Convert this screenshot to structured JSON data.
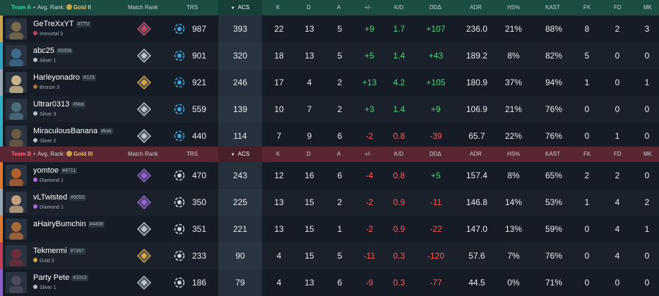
{
  "columns": {
    "match_rank": "Match Rank",
    "trs": "TRS",
    "acs": "ACS",
    "k": "K",
    "d": "D",
    "a": "A",
    "pm": "+/-",
    "kd": "K/D",
    "dd": "DDΔ",
    "adr": "ADR",
    "hs": "HS%",
    "kast": "KAST",
    "fk": "FK",
    "fd": "FD",
    "mk": "MK"
  },
  "team_a": {
    "name": "Team A",
    "avg_label": "Avg. Rank:",
    "avg_rank": "Gold II",
    "players": [
      {
        "name": "GeTreXxYT",
        "tag": "#TTV",
        "rank": "Immortal 3",
        "rank_color": "#c2455d",
        "trs": "987",
        "acs": "393",
        "k": "22",
        "d": "13",
        "a": "5",
        "pm": "+9",
        "kd": "1.7",
        "dd": "+107",
        "adr": "236.0",
        "hs": "21%",
        "kast": "88%",
        "fk": "8",
        "fd": "2",
        "mk": "3",
        "trend": "pos"
      },
      {
        "name": "abc25",
        "tag": "#3356",
        "rank": "Silver 1",
        "rank_color": "#b9c2c9",
        "trs": "901",
        "acs": "320",
        "k": "18",
        "d": "13",
        "a": "5",
        "pm": "+5",
        "kd": "1.4",
        "dd": "+43",
        "adr": "189.2",
        "hs": "8%",
        "kast": "82%",
        "fk": "5",
        "fd": "0",
        "mk": "0",
        "trend": "pos"
      },
      {
        "name": "Harleyonadro",
        "tag": "#123",
        "rank": "Bronze 3",
        "rank_color": "#a5773f",
        "trs": "921",
        "acs": "246",
        "k": "17",
        "d": "4",
        "a": "2",
        "pm": "+13",
        "kd": "4.2",
        "dd": "+105",
        "adr": "180.9",
        "hs": "37%",
        "kast": "94%",
        "fk": "1",
        "fd": "0",
        "mk": "1",
        "trend": "pos"
      },
      {
        "name": "Ultrar0313",
        "tag": "#Mat",
        "rank": "Silver 3",
        "rank_color": "#b9c2c9",
        "trs": "559",
        "acs": "139",
        "k": "10",
        "d": "7",
        "a": "2",
        "pm": "+3",
        "kd": "1.4",
        "dd": "+9",
        "adr": "106.9",
        "hs": "21%",
        "kast": "76%",
        "fk": "0",
        "fd": "0",
        "mk": "0",
        "trend": "pos"
      },
      {
        "name": "MiraculousBanana",
        "tag": "#kok",
        "rank": "Silver 2",
        "rank_color": "#b9c2c9",
        "trs": "440",
        "acs": "114",
        "k": "7",
        "d": "9",
        "a": "6",
        "pm": "-2",
        "kd": "0.8",
        "dd": "-39",
        "adr": "65.7",
        "hs": "22%",
        "kast": "76%",
        "fk": "0",
        "fd": "1",
        "mk": "0",
        "trend": "neg"
      }
    ]
  },
  "team_b": {
    "name": "Team B",
    "avg_label": "Avg. Rank:",
    "avg_rank": "Gold III",
    "players": [
      {
        "name": "yomtoe",
        "tag": "#4711",
        "rank": "Diamond 1",
        "rank_color": "#b168e0",
        "trs": "470",
        "acs": "243",
        "k": "12",
        "d": "16",
        "a": "6",
        "pm": "-4",
        "kd": "0.8",
        "dd": "+5",
        "adr": "157.4",
        "hs": "8%",
        "kast": "65%",
        "fk": "2",
        "fd": "2",
        "mk": "0",
        "trend": "neg",
        "dd_trend": "pos"
      },
      {
        "name": "vLTwisted",
        "tag": "#5050",
        "rank": "Diamond 1",
        "rank_color": "#b168e0",
        "trs": "350",
        "acs": "225",
        "k": "13",
        "d": "15",
        "a": "2",
        "pm": "-2",
        "kd": "0.9",
        "dd": "-11",
        "adr": "146.8",
        "hs": "14%",
        "kast": "53%",
        "fk": "1",
        "fd": "4",
        "mk": "2",
        "trend": "neg"
      },
      {
        "name": "aHairyBumchin",
        "tag": "#4438",
        "rank": "",
        "rank_color": "#b9c2c9",
        "trs": "351",
        "acs": "221",
        "k": "13",
        "d": "15",
        "a": "1",
        "pm": "-2",
        "kd": "0.9",
        "dd": "-22",
        "adr": "147.0",
        "hs": "13%",
        "kast": "59%",
        "fk": "0",
        "fd": "4",
        "mk": "1",
        "trend": "neg"
      },
      {
        "name": "Tekmermi",
        "tag": "#7367",
        "rank": "Gold 3",
        "rank_color": "#d7a642",
        "trs": "233",
        "acs": "90",
        "k": "4",
        "d": "15",
        "a": "5",
        "pm": "-11",
        "kd": "0.3",
        "dd": "-120",
        "adr": "57.6",
        "hs": "7%",
        "kast": "76%",
        "fk": "0",
        "fd": "4",
        "mk": "0",
        "trend": "neg"
      },
      {
        "name": "Party Pete",
        "tag": "#1013",
        "rank": "Silver 1",
        "rank_color": "#b9c2c9",
        "trs": "186",
        "acs": "79",
        "k": "4",
        "d": "13",
        "a": "6",
        "pm": "-9",
        "kd": "0.3",
        "dd": "-77",
        "adr": "44.5",
        "hs": "0%",
        "kast": "71%",
        "fk": "0",
        "fd": "0",
        "mk": "0",
        "trend": "neg"
      }
    ]
  },
  "icons": {
    "sort": "sort-desc-icon",
    "match_rank": "rank-emblem-icon",
    "trs": "trs-badge-icon"
  },
  "colors": {
    "team_a_header": "#1b4d43",
    "team_b_header": "#5a2631",
    "positive": "#4fd47e",
    "negative": "#ff5a5a"
  }
}
